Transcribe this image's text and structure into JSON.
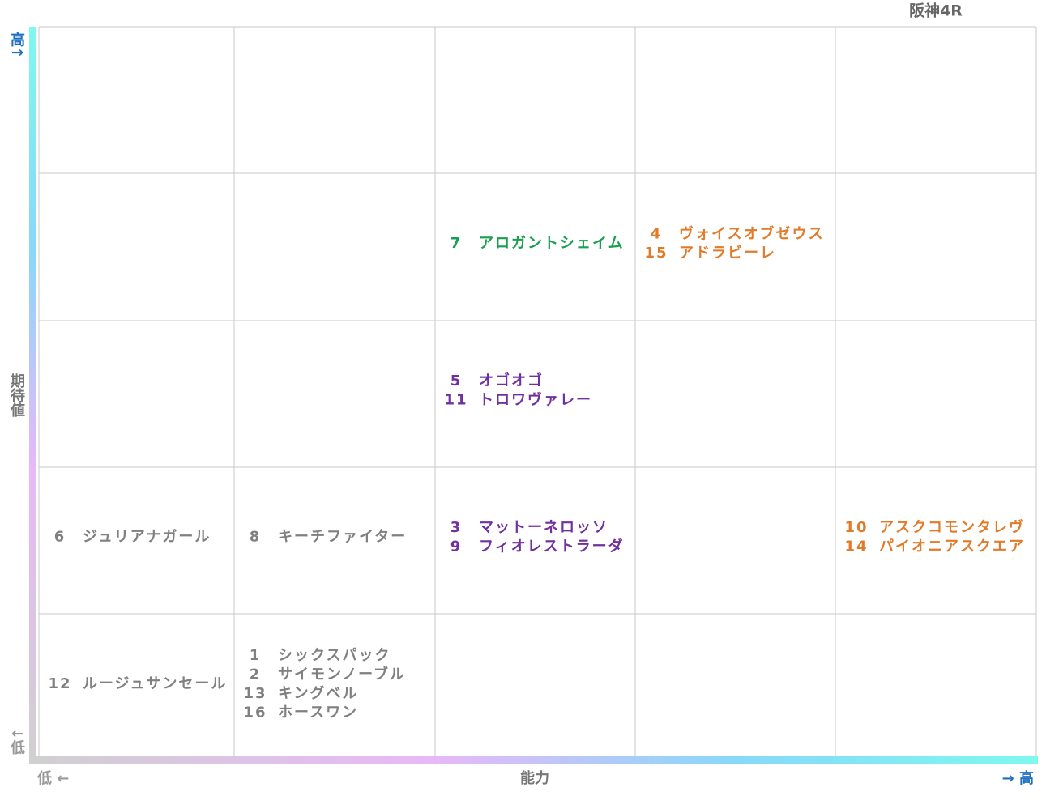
{
  "title": "阪神4R",
  "y_axis": {
    "high": "高↑",
    "label": "期待値",
    "low": "↓低"
  },
  "x_axis": {
    "low": "低 ←",
    "label": "能力",
    "high": "→ 高"
  },
  "grid": {
    "rows": [
      [
        {
          "entries": []
        },
        {
          "entries": []
        },
        {
          "entries": []
        },
        {
          "entries": []
        },
        {
          "entries": []
        }
      ],
      [
        {
          "entries": []
        },
        {
          "entries": []
        },
        {
          "color": "#1a9e50",
          "entries": [
            {
              "number": 7,
              "name": "アロガントシェイム"
            }
          ]
        },
        {
          "color": "#e07b2a",
          "entries": [
            {
              "number": 4,
              "name": "ヴォイスオブゼウス"
            },
            {
              "number": 15,
              "name": "アドラビーレ"
            }
          ]
        },
        {
          "entries": []
        }
      ],
      [
        {
          "entries": []
        },
        {
          "entries": []
        },
        {
          "color": "#7030a0",
          "entries": [
            {
              "number": 5,
              "name": "オゴオゴ"
            },
            {
              "number": 11,
              "name": "トロワヴァレー"
            }
          ]
        },
        {
          "entries": []
        },
        {
          "entries": []
        }
      ],
      [
        {
          "color": "#808080",
          "entries": [
            {
              "number": 6,
              "name": "ジュリアナガール"
            }
          ]
        },
        {
          "color": "#808080",
          "entries": [
            {
              "number": 8,
              "name": "キーチファイター"
            }
          ]
        },
        {
          "color": "#7030a0",
          "entries": [
            {
              "number": 3,
              "name": "マットーネロッソ"
            },
            {
              "number": 9,
              "name": "フィオレストラーダ"
            }
          ]
        },
        {
          "entries": []
        },
        {
          "color": "#e07b2a",
          "entries": [
            {
              "number": 10,
              "name": "アスクコモンタレヴ"
            },
            {
              "number": 14,
              "name": "パイオニアスクエア"
            }
          ]
        }
      ],
      [
        {
          "color": "#808080",
          "entries": [
            {
              "number": 12,
              "name": "ルージュサンセール"
            }
          ]
        },
        {
          "color": "#808080",
          "entries": [
            {
              "number": 1,
              "name": "シックスパック"
            },
            {
              "number": 2,
              "name": "サイモンノーブル"
            },
            {
              "number": 13,
              "name": "キングベル"
            },
            {
              "number": 16,
              "name": "ホースワン"
            }
          ]
        },
        {
          "entries": []
        },
        {
          "entries": []
        },
        {
          "entries": []
        }
      ]
    ]
  }
}
